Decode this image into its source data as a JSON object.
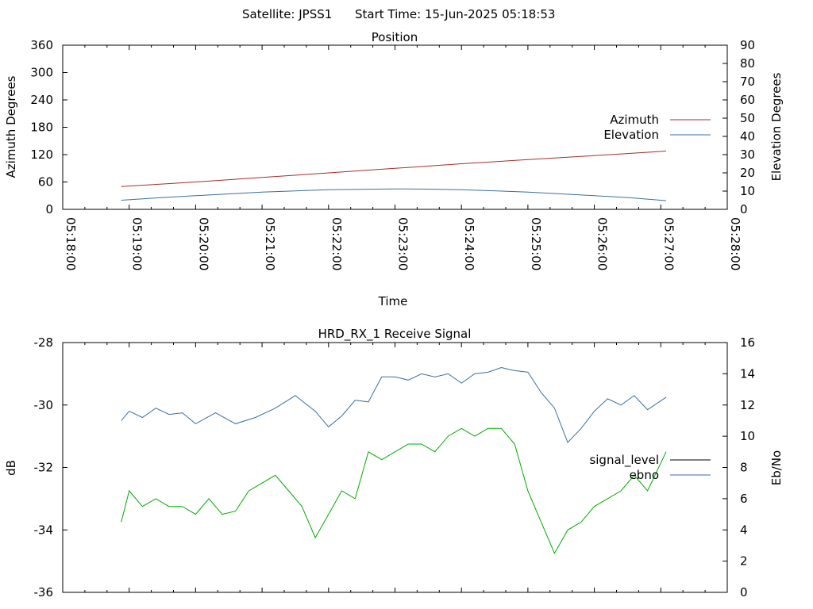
{
  "header": {
    "satellite": "Satellite: JPSS1",
    "start_time": "Start Time: 15-Jun-2025 05:18:53"
  },
  "chart_data": [
    {
      "type": "line",
      "title": "Position",
      "xlabel": "Time",
      "ylabel_left": "Azimuth Degrees",
      "ylabel_right": "Elevation Degrees",
      "x_ticks": [
        "05:18:00",
        "05:19:00",
        "05:20:00",
        "05:21:00",
        "05:22:00",
        "05:23:00",
        "05:24:00",
        "05:25:00",
        "05:26:00",
        "05:27:00",
        "05:28:00"
      ],
      "xlim_minutes": [
        0,
        10
      ],
      "y_left_ticks": [
        "0",
        "60",
        "120",
        "180",
        "240",
        "300",
        "360"
      ],
      "y_left_lim": [
        0,
        360
      ],
      "y_right_ticks": [
        "0",
        "10",
        "20",
        "30",
        "40",
        "50",
        "60",
        "70",
        "80",
        "90"
      ],
      "y_right_lim": [
        0,
        90
      ],
      "legend_position": "right",
      "series": [
        {
          "name": "Azimuth",
          "axis": "left",
          "color": "#a0302a",
          "x_minutes": [
            0.88,
            2,
            3,
            4,
            5,
            6,
            7,
            8,
            9,
            9.08
          ],
          "values": [
            50,
            60,
            70,
            80,
            90,
            100,
            109,
            118,
            127,
            128
          ]
        },
        {
          "name": "Elevation",
          "axis": "right",
          "color": "#3a6f9f",
          "x_minutes": [
            0.88,
            1.5,
            2,
            3,
            4,
            4.5,
            5,
            5.5,
            6,
            7,
            8,
            8.5,
            9,
            9.08
          ],
          "values": [
            5,
            6.5,
            7.5,
            9.5,
            10.8,
            11,
            11.2,
            11.1,
            10.8,
            9.5,
            7.5,
            6.5,
            5,
            4.8
          ]
        }
      ]
    },
    {
      "type": "line",
      "title": "HRD_RX_1 Receive Signal",
      "ylabel_left": "dB",
      "ylabel_right": "Eb/No",
      "y_left_ticks": [
        "-28",
        "-30",
        "-32",
        "-34",
        "-36"
      ],
      "y_left_lim": [
        -36,
        -28
      ],
      "y_right_ticks": [
        "0",
        "2",
        "4",
        "6",
        "8",
        "10",
        "12",
        "14",
        "16"
      ],
      "y_right_lim": [
        0,
        16
      ],
      "xlim_minutes": [
        0,
        10
      ],
      "legend_position": "right",
      "series": [
        {
          "name": "signal_level",
          "axis": "left",
          "color": "#000000",
          "x_minutes": [],
          "values": []
        },
        {
          "name": "ebno",
          "axis": "right",
          "color": "#3a6f9f",
          "x_minutes": [
            0.88,
            1.0,
            1.2,
            1.4,
            1.6,
            1.8,
            2.0,
            2.3,
            2.6,
            2.9,
            3.2,
            3.5,
            3.8,
            4.0,
            4.2,
            4.4,
            4.6,
            4.8,
            5.0,
            5.2,
            5.4,
            5.6,
            5.8,
            6.0,
            6.2,
            6.4,
            6.6,
            6.8,
            7.0,
            7.2,
            7.4,
            7.6,
            7.8,
            8.0,
            8.2,
            8.4,
            8.6,
            8.8,
            9.08
          ],
          "values": [
            11,
            11.6,
            11.2,
            11.8,
            11.4,
            11.5,
            10.8,
            11.5,
            10.8,
            11.2,
            11.8,
            12.6,
            11.6,
            10.6,
            11.3,
            12.3,
            12.2,
            13.8,
            13.8,
            13.6,
            14.0,
            13.8,
            14.0,
            13.4,
            14.0,
            14.1,
            14.4,
            14.2,
            14.1,
            12.8,
            11.8,
            9.6,
            10.5,
            11.6,
            12.4,
            12.0,
            12.6,
            11.7,
            12.5
          ]
        },
        {
          "name": "",
          "axis": "right",
          "color": "#00aa00",
          "x_minutes": [
            0.88,
            1.0,
            1.2,
            1.4,
            1.6,
            1.8,
            2.0,
            2.2,
            2.4,
            2.6,
            2.8,
            3.0,
            3.2,
            3.4,
            3.6,
            3.8,
            4.0,
            4.2,
            4.4,
            4.6,
            4.8,
            5.0,
            5.2,
            5.4,
            5.6,
            5.8,
            6.0,
            6.2,
            6.4,
            6.6,
            6.8,
            7.0,
            7.2,
            7.4,
            7.6,
            7.8,
            8.0,
            8.2,
            8.4,
            8.6,
            8.8,
            9.08
          ],
          "values": [
            4.5,
            6.5,
            5.5,
            6.0,
            5.5,
            5.5,
            5.0,
            6.0,
            5.0,
            5.2,
            6.5,
            7.0,
            7.5,
            6.5,
            5.5,
            3.5,
            5.0,
            6.5,
            6.0,
            9.0,
            8.5,
            9.0,
            9.5,
            9.5,
            9.0,
            10.0,
            10.5,
            10.0,
            10.5,
            10.5,
            9.5,
            6.5,
            4.5,
            2.5,
            4.0,
            4.5,
            5.5,
            6.0,
            6.5,
            7.5,
            6.5,
            9.0
          ]
        }
      ]
    }
  ]
}
